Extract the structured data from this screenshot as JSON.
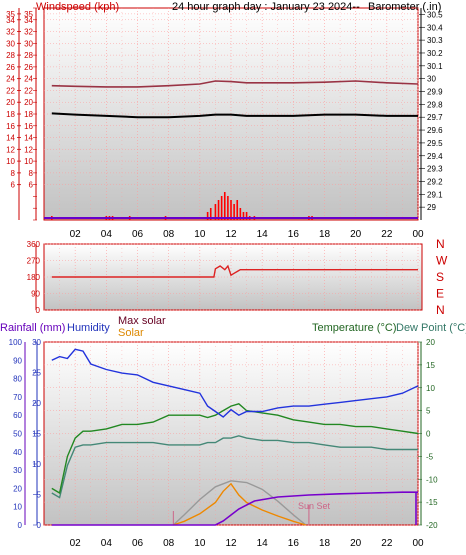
{
  "header": {
    "left": "Windspeed (kph)",
    "center": "24 hour graph day : January 23 2024--",
    "right": "Barometer (.in)"
  },
  "wind_panel": {
    "left_ticks": [
      "35",
      "34",
      "32",
      "30",
      "28",
      "26",
      "24",
      "22",
      "20",
      "18",
      "16",
      "14",
      "12",
      "10",
      "8",
      "6"
    ],
    "right_ticks": [
      "30.5",
      "30.4",
      "30.3",
      "30.2",
      "30.1",
      "30",
      "29.9",
      "29.8",
      "29.7",
      "29.6",
      "29.5",
      "29.4",
      "29.3",
      "29.2",
      "29.1",
      "29"
    ]
  },
  "direction_panel": {
    "ticks": [
      "360",
      "270",
      "180",
      "90",
      "0"
    ],
    "compass": [
      "N",
      "W",
      "S",
      "E",
      "N"
    ]
  },
  "bottom_panel": {
    "rain_label": "Rainfall (mm)",
    "humidity_label": "Humidity",
    "max_solar_label": "Max solar",
    "solar_label": "Solar",
    "temp_label": "Temperature (°C)",
    "dew_label": "Dew Point (°C)",
    "sunset_label": "Sun Set",
    "rain_ticks": [
      "100",
      "90",
      "80",
      "70",
      "60",
      "50",
      "40",
      "30",
      "20",
      "10",
      "0"
    ],
    "humidity_ticks": [
      "30",
      "25",
      "20",
      "15",
      "10",
      "5",
      "0"
    ],
    "temp_ticks": [
      "20",
      "15",
      "10",
      "5",
      "0",
      "-5",
      "-10",
      "-15",
      "-20"
    ]
  },
  "time_ticks": [
    "02",
    "04",
    "06",
    "08",
    "10",
    "12",
    "14",
    "16",
    "18",
    "20",
    "22",
    "00"
  ],
  "colors": {
    "axis_red": "#cc0000",
    "grid_pink": "#ff9a9a",
    "barometer": "#000000",
    "wind_avg": "#993344",
    "wind_gust": "#ff0000",
    "direction": "#dd2222",
    "humidity": "#2233dd",
    "temperature": "#228822",
    "dewpoint": "#448877",
    "solar": "#ee8800",
    "max_solar": "#999999",
    "rain": "#7700cc"
  },
  "chart_data": [
    {
      "type": "line",
      "title": "24 hour graph day : January 23 2024--",
      "xlabel": "",
      "ylabel": "Windspeed (kph)",
      "y2label": "Barometer (.in)",
      "x": [
        0.5,
        2,
        4,
        6,
        8,
        10,
        11,
        12,
        13,
        14,
        16,
        18,
        20,
        22,
        24
      ],
      "ylim": [
        0,
        36
      ],
      "y2lim": [
        28.9,
        30.55
      ],
      "series": [
        {
          "name": "Barometer (.in)",
          "axis": "right",
          "values": [
            29.73,
            29.72,
            29.71,
            29.7,
            29.7,
            29.71,
            29.72,
            29.72,
            29.71,
            29.71,
            29.71,
            29.72,
            29.72,
            29.71,
            29.71
          ]
        },
        {
          "name": "Windspeed (kph)",
          "axis": "left",
          "values": [
            22.8,
            22.7,
            22.6,
            22.6,
            22.8,
            23.1,
            23.6,
            23.5,
            23.3,
            23.3,
            23.3,
            23.4,
            23.6,
            23.3,
            23.1
          ]
        }
      ],
      "gust_bars": {
        "x": [
          0.5,
          4,
          4.2,
          4.4,
          5.5,
          7.8,
          10.5,
          10.7,
          11.0,
          11.2,
          11.4,
          11.6,
          11.8,
          12.0,
          12.2,
          12.4,
          12.6,
          12.8,
          13.0,
          13.2,
          13.5,
          17.0,
          17.2
        ],
        "values": [
          1,
          1,
          1,
          1,
          1,
          1,
          2,
          3,
          4,
          5,
          6,
          7,
          6,
          5,
          4,
          5,
          3,
          2,
          2,
          1,
          1,
          1,
          1
        ]
      }
    },
    {
      "type": "line",
      "ylabel": "Wind direction",
      "ylim": [
        0,
        360
      ],
      "x": [
        0.5,
        10.9,
        11.0,
        11.3,
        11.6,
        11.8,
        12.0,
        12.2,
        12.4,
        12.6,
        13.0,
        24
      ],
      "series": [
        {
          "name": "Direction",
          "values": [
            180,
            180,
            225,
            240,
            220,
            240,
            190,
            200,
            210,
            220,
            220,
            220
          ]
        }
      ]
    },
    {
      "type": "line",
      "x": [
        0.5,
        1.0,
        1.5,
        2.0,
        2.5,
        3.0,
        4.0,
        5.0,
        6.0,
        7.0,
        8.0,
        9.0,
        10.0,
        10.5,
        11.0,
        11.5,
        12.0,
        12.5,
        13.0,
        14.0,
        15.0,
        16.0,
        17.0,
        18.0,
        19.0,
        20.0,
        21.0,
        22.0,
        23.0,
        24.0
      ],
      "series": [
        {
          "name": "Humidity",
          "axis": "left",
          "ylim": [
            0,
            100
          ],
          "values": [
            90,
            92,
            91,
            96,
            95,
            88,
            85,
            83,
            82,
            78,
            76,
            74,
            72,
            65,
            62,
            59,
            63,
            60,
            62,
            62,
            64,
            65,
            65,
            66,
            67,
            68,
            69,
            70,
            72,
            76
          ]
        },
        {
          "name": "Temperature (°C)",
          "axis": "right",
          "ylim": [
            -20,
            20
          ],
          "values": [
            -12,
            -13,
            -5,
            -1,
            0.5,
            0.5,
            1,
            2,
            2,
            2.5,
            4,
            4,
            4,
            3.5,
            4,
            5,
            6,
            6.5,
            5,
            4.5,
            4,
            3,
            2.5,
            2,
            2,
            1.5,
            1.5,
            1,
            0.5,
            0
          ]
        },
        {
          "name": "Dew Point (°C)",
          "axis": "right",
          "ylim": [
            -20,
            20
          ],
          "values": [
            -13,
            -14,
            -7,
            -3,
            -2.5,
            -2.5,
            -2,
            -2,
            -2,
            -2,
            -2.5,
            -2.5,
            -2.5,
            -2,
            -2,
            -1,
            -1,
            -0.5,
            -1,
            -1.5,
            -1.5,
            -2,
            -2,
            -2.5,
            -3,
            -3,
            -3,
            -3.5,
            -3.5,
            -3.5
          ]
        }
      ],
      "solar": {
        "x": [
          8.3,
          9,
          10,
          11,
          11.5,
          12,
          12.5,
          13,
          14,
          15,
          16,
          16.8
        ],
        "values": [
          0,
          5,
          15,
          30,
          45,
          55,
          40,
          30,
          20,
          12,
          5,
          0
        ]
      },
      "max_solar": {
        "x": [
          8.3,
          9,
          10,
          11,
          12,
          13,
          14,
          15,
          16,
          16.8
        ],
        "values": [
          0,
          12,
          30,
          45,
          52,
          50,
          42,
          28,
          12,
          0
        ]
      },
      "rain": {
        "x": [
          0.5,
          11.0,
          11.5,
          12.5,
          13.5,
          15,
          17,
          19,
          21,
          23,
          24
        ],
        "values": [
          0,
          0,
          1,
          4,
          6,
          7,
          7.5,
          7.8,
          8,
          8.2,
          8.2
        ]
      }
    }
  ]
}
